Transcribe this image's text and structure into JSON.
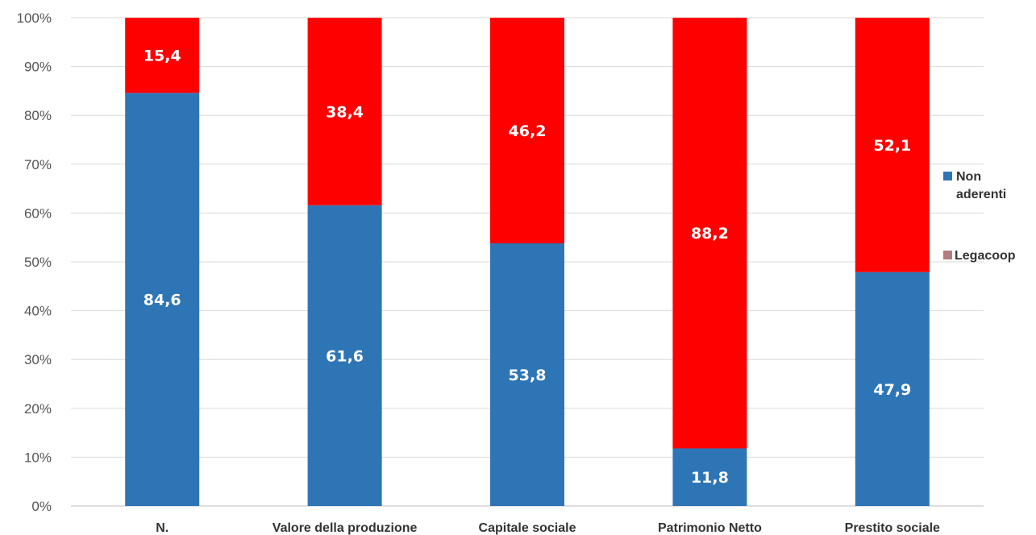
{
  "chart_data": {
    "type": "bar",
    "stacked": true,
    "percent": true,
    "categories": [
      "N.",
      "Valore della produzione",
      "Capitale sociale",
      "Patrimonio Netto",
      "Prestito sociale"
    ],
    "series": [
      {
        "name": "Non aderenti",
        "values": [
          84.6,
          61.6,
          53.8,
          11.8,
          47.9
        ],
        "labels": [
          "84,6",
          "61,6",
          "53,8",
          "11,8",
          "47,9"
        ],
        "color": "#2e75b6"
      },
      {
        "name": "Legacoop",
        "values": [
          15.4,
          38.4,
          46.2,
          88.2,
          52.1
        ],
        "labels": [
          "15,4",
          "38,4",
          "46,2",
          "88,2",
          "52,1"
        ],
        "color": "#ff0000",
        "legend_color": "#b57c7c"
      }
    ],
    "y_ticks": [
      "0%",
      "10%",
      "20%",
      "30%",
      "40%",
      "50%",
      "60%",
      "70%",
      "80%",
      "90%",
      "100%"
    ],
    "ylim": [
      0,
      100
    ],
    "grid": true,
    "legend": {
      "position": "right",
      "entries": [
        "Non aderenti",
        "Legacoop"
      ]
    }
  }
}
